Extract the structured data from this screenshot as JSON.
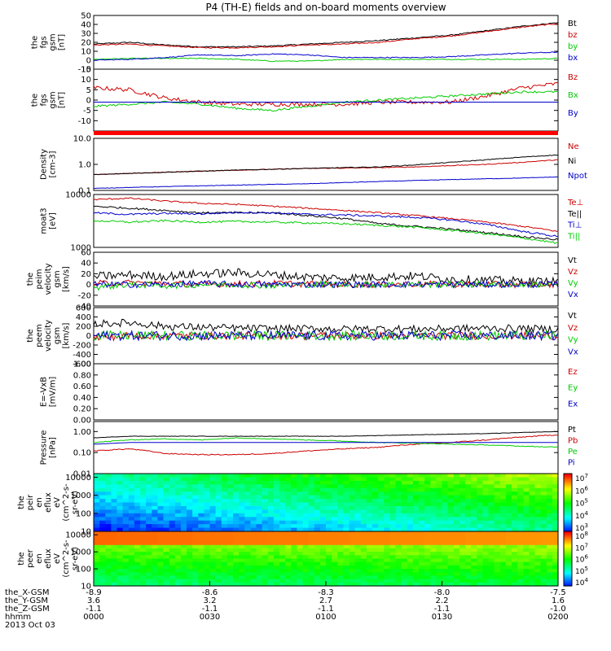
{
  "title": "P4 (TH-E) fields and on-board moments overview",
  "chart_data": [
    {
      "type": "line",
      "ylabel": [
        "the",
        "fgs",
        "gsm",
        "[nT]"
      ],
      "yticks": [
        "50",
        "40",
        "30",
        "20",
        "10",
        "0",
        "-10"
      ],
      "ylim": [
        -10,
        50
      ],
      "series": [
        {
          "name": "Bt",
          "color": "#000000",
          "values": [
            18,
            20,
            17,
            15,
            15,
            16,
            18,
            20,
            22,
            25,
            28,
            33,
            38,
            42
          ],
          "noise": 0.6
        },
        {
          "name": "bz",
          "color": "#cc0000",
          "values": [
            17,
            18,
            16,
            14,
            14,
            15,
            17,
            18,
            20,
            24,
            27,
            32,
            37,
            41
          ],
          "noise": 0.6
        },
        {
          "name": "by",
          "color": "#00cc00",
          "values": [
            1,
            2,
            2,
            2,
            1,
            -1,
            -1,
            1,
            1,
            1,
            1,
            1,
            1,
            2
          ],
          "noise": 0.5
        },
        {
          "name": "bx",
          "color": "#0000cc",
          "values": [
            0,
            1,
            3,
            6,
            5,
            7,
            6,
            3,
            3,
            3,
            4,
            6,
            8,
            9
          ],
          "noise": 0.5
        }
      ]
    },
    {
      "type": "line",
      "ylabel": [
        "the",
        "fgs",
        "gsm",
        "[nT]"
      ],
      "yticks": [
        "15",
        "10",
        "5",
        "0",
        "-5",
        "-10"
      ],
      "ylim": [
        -15,
        15
      ],
      "series": [
        {
          "name": "Bz",
          "color": "#cc0000",
          "values": [
            6,
            5,
            1,
            -1,
            -2,
            -2,
            -2,
            -2,
            -1,
            -1,
            -1,
            2,
            6,
            8
          ],
          "noise": 1.0
        },
        {
          "name": "Bx",
          "color": "#00cc00",
          "values": [
            -3,
            -2,
            -1,
            -2,
            -4,
            -5,
            -3,
            -1,
            0,
            1,
            2,
            3,
            4,
            4
          ],
          "noise": 0.5
        },
        {
          "name": "By",
          "color": "#0000cc",
          "values": [
            -1,
            -1,
            -1,
            -1,
            -1,
            -1,
            -1,
            -1,
            -1,
            -1,
            -1,
            -1,
            -1,
            -1
          ],
          "noise": 0.0
        }
      ]
    },
    {
      "type": "line",
      "log_scale": true,
      "ylabel": [
        "Density",
        "[cm-3]"
      ],
      "yticks": [
        "10.0",
        "1.0",
        "0.1"
      ],
      "ylim": [
        0.1,
        10
      ],
      "series": [
        {
          "name": "Ne",
          "color": "#cc0000",
          "values": [
            0.4,
            0.45,
            0.5,
            0.55,
            0.6,
            0.65,
            0.7,
            0.72,
            0.75,
            0.8,
            0.9,
            1.0,
            1.2,
            1.5
          ],
          "noise": 0.03
        },
        {
          "name": "Ni",
          "color": "#000000",
          "values": [
            0.4,
            0.45,
            0.5,
            0.55,
            0.6,
            0.65,
            0.7,
            0.75,
            0.8,
            0.95,
            1.2,
            1.5,
            1.9,
            2.3
          ],
          "noise": 0.03
        },
        {
          "name": "Npot",
          "color": "#0000cc",
          "values": [
            0.12,
            0.13,
            0.14,
            0.15,
            0.16,
            0.17,
            0.18,
            0.2,
            0.22,
            0.24,
            0.26,
            0.28,
            0.3,
            0.33
          ],
          "noise": 0.02
        }
      ]
    },
    {
      "type": "line",
      "log_scale": true,
      "ylabel": [
        "moat3",
        "[eV]"
      ],
      "yticks": [
        "10000",
        "1000"
      ],
      "ylim": [
        1000,
        10000
      ],
      "series": [
        {
          "name": "Te⊥",
          "color": "#cc0000",
          "values": [
            8000,
            8500,
            7500,
            6800,
            6500,
            6000,
            5500,
            5000,
            4500,
            4000,
            3500,
            3000,
            2500,
            2000
          ],
          "noise": 0.03
        },
        {
          "name": "Te||",
          "color": "#000000",
          "values": [
            6000,
            5500,
            5000,
            4500,
            4500,
            4500,
            4000,
            3500,
            2800,
            2500,
            2200,
            1900,
            1600,
            1400
          ],
          "noise": 0.04
        },
        {
          "name": "Ti⊥",
          "color": "#0000cc",
          "values": [
            4500,
            4200,
            4400,
            4300,
            4600,
            4500,
            4200,
            4100,
            3900,
            3700,
            3300,
            2700,
            2000,
            1600
          ],
          "noise": 0.04
        },
        {
          "name": "Ti||",
          "color": "#00cc00",
          "values": [
            3200,
            3000,
            3200,
            3000,
            3100,
            3000,
            2900,
            2800,
            2600,
            2400,
            2100,
            1800,
            1500,
            1200
          ],
          "noise": 0.04
        }
      ]
    },
    {
      "type": "line",
      "ylabel": [
        "the",
        "peim",
        "velocity",
        "gsm",
        "[km/s]"
      ],
      "yticks": [
        "60",
        "40",
        "20",
        "0",
        "-20",
        "-40"
      ],
      "ylim": [
        -40,
        60
      ],
      "series": [
        {
          "name": "Vt",
          "color": "#000000",
          "values": [
            15,
            18,
            15,
            20,
            22,
            18,
            14,
            12,
            14,
            16,
            10,
            8,
            6,
            5
          ],
          "noise": 8
        },
        {
          "name": "Vz",
          "color": "#cc0000",
          "values": [
            2,
            3,
            2,
            0,
            1,
            2,
            1,
            0,
            0,
            1,
            0,
            0,
            0,
            0
          ],
          "noise": 6
        },
        {
          "name": "Vy",
          "color": "#00cc00",
          "values": [
            -5,
            0,
            -2,
            0,
            0,
            -2,
            0,
            0,
            0,
            0,
            0,
            0,
            0,
            0
          ],
          "noise": 6
        },
        {
          "name": "Vx",
          "color": "#0000cc",
          "values": [
            0,
            0,
            0,
            2,
            0,
            0,
            0,
            0,
            0,
            0,
            0,
            0,
            0,
            0
          ],
          "noise": 6
        }
      ]
    },
    {
      "type": "line",
      "ylabel": [
        "the",
        "peem",
        "velocity",
        "gsm",
        "[km/s]"
      ],
      "yticks": [
        "600",
        "400",
        "200",
        "0",
        "-200",
        "-400",
        "-600"
      ],
      "ylim": [
        -600,
        600
      ],
      "series": [
        {
          "name": "Vt",
          "color": "#000000",
          "values": [
            250,
            280,
            200,
            180,
            160,
            150,
            150,
            140,
            150,
            140,
            150,
            160,
            150,
            140
          ],
          "noise": 80
        },
        {
          "name": "Vz",
          "color": "#cc0000",
          "values": [
            -50,
            0,
            0,
            0,
            0,
            0,
            0,
            0,
            0,
            0,
            0,
            0,
            0,
            0
          ],
          "noise": 80
        },
        {
          "name": "Vy",
          "color": "#00cc00",
          "values": [
            0,
            0,
            0,
            0,
            0,
            0,
            0,
            0,
            0,
            0,
            0,
            0,
            0,
            0
          ],
          "noise": 100
        },
        {
          "name": "Vx",
          "color": "#0000cc",
          "values": [
            0,
            0,
            0,
            0,
            0,
            0,
            0,
            0,
            0,
            0,
            0,
            0,
            0,
            0
          ],
          "noise": 100
        }
      ]
    },
    {
      "type": "line",
      "ylabel": [
        "E=-VxB",
        "[mV/m]"
      ],
      "yticks": [
        "1.00",
        "0.80",
        "0.60",
        "0.40",
        "0.20",
        "0.00"
      ],
      "ylim": [
        0,
        1
      ],
      "series": [
        {
          "name": "Ez",
          "color": "#cc0000",
          "values": []
        },
        {
          "name": "Ey",
          "color": "#00cc00",
          "values": []
        },
        {
          "name": "Ex",
          "color": "#0000cc",
          "values": []
        }
      ]
    },
    {
      "type": "line",
      "log_scale": true,
      "ylabel": [
        "Pressure",
        "[nPa]"
      ],
      "yticks": [
        "1.00",
        "0.10",
        "0.01"
      ],
      "ylim": [
        0.01,
        3
      ],
      "series": [
        {
          "name": "Pt",
          "color": "#000000",
          "values": [
            0.5,
            0.6,
            0.6,
            0.6,
            0.6,
            0.6,
            0.6,
            0.6,
            0.65,
            0.7,
            0.75,
            0.8,
            0.9,
            1.0
          ],
          "noise": 0.02
        },
        {
          "name": "Pb",
          "color": "#cc0000",
          "values": [
            0.12,
            0.15,
            0.09,
            0.08,
            0.08,
            0.09,
            0.12,
            0.15,
            0.18,
            0.25,
            0.3,
            0.4,
            0.55,
            0.7
          ],
          "noise": 0.05
        },
        {
          "name": "Pe",
          "color": "#00cc00",
          "values": [
            0.3,
            0.4,
            0.45,
            0.4,
            0.5,
            0.45,
            0.4,
            0.35,
            0.3,
            0.28,
            0.25,
            0.23,
            0.2,
            0.18
          ],
          "noise": 0.04
        },
        {
          "name": "Pi",
          "color": "#0000cc",
          "values": [
            0.25,
            0.3,
            0.3,
            0.3,
            0.3,
            0.3,
            0.3,
            0.3,
            0.3,
            0.3,
            0.3,
            0.3,
            0.3,
            0.3
          ],
          "noise": 0.0
        }
      ]
    },
    {
      "type": "heatmap",
      "ylabel": [
        "the",
        "peir",
        "en",
        "eflux",
        "eV",
        "(cm^2-s-",
        "sr-eV)"
      ],
      "yticks": [
        "10000",
        "1000",
        "100",
        "10"
      ],
      "colorbar_ticks": [
        "10^7",
        "10^6",
        "10^5",
        "10^4",
        "10^3"
      ]
    },
    {
      "type": "heatmap",
      "ylabel": [
        "the",
        "peer",
        "en",
        "eflux",
        "eV",
        "(cm^2-s-",
        "sr-eV)"
      ],
      "yticks": [
        "10000",
        "1000",
        "100",
        "10"
      ],
      "colorbar_ticks": [
        "10^8",
        "10^7",
        "10^6",
        "10^5",
        "10^4"
      ]
    }
  ],
  "ephemeris": {
    "row_labels": [
      "the_X-GSM",
      "the_Y-GSM",
      "the_Z-GSM",
      "hhmm",
      "2013 Oct 03"
    ],
    "columns": [
      [
        "-8.9",
        "3.6",
        "-1.1",
        "0000"
      ],
      [
        "-8.6",
        "3.2",
        "-1.1",
        "0030"
      ],
      [
        "-8.3",
        "2.7",
        "-1.1",
        "0100"
      ],
      [
        "-8.0",
        "2.2",
        "-1.1",
        "0130"
      ],
      [
        "-7.5",
        "1.6",
        "-1.0",
        "0200"
      ]
    ]
  }
}
